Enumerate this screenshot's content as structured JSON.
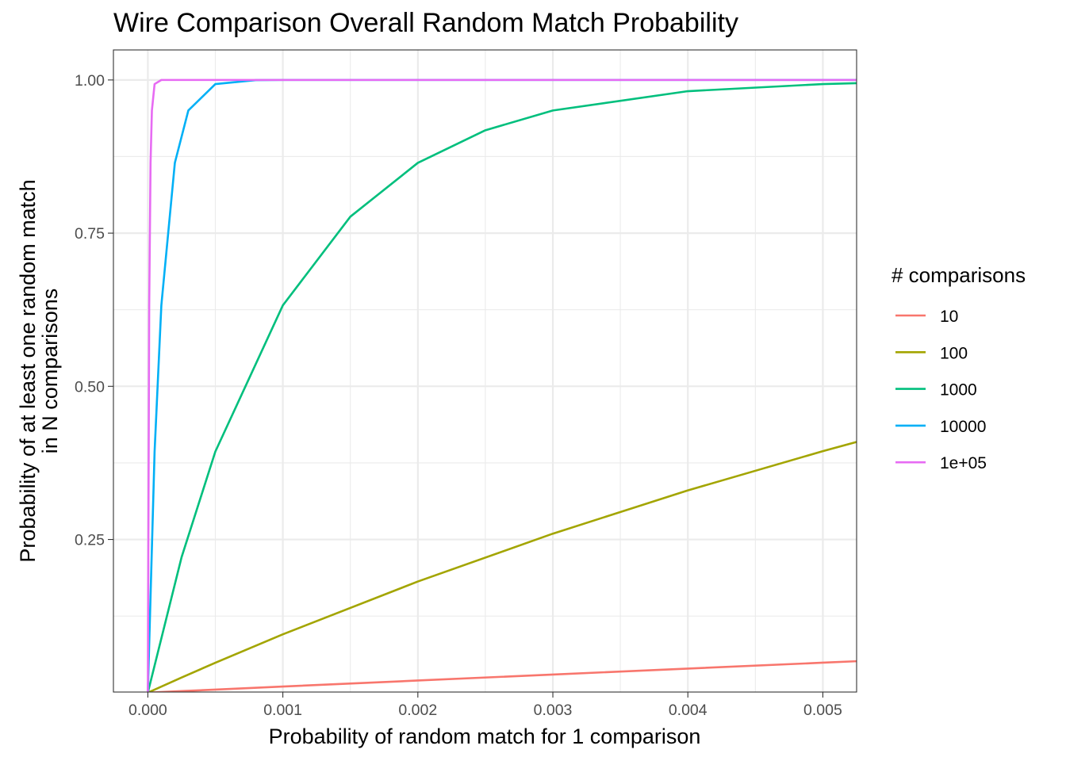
{
  "chart_data": {
    "type": "line",
    "title": "Wire Comparison Overall Random Match Probability",
    "xlabel": "Probability of random match for 1 comparison",
    "ylabel_lines": [
      "Probability of at least one random match",
      "in N comparisons"
    ],
    "xlim": [
      -0.000255,
      0.00525
    ],
    "ylim": [
      0.001,
      1.049
    ],
    "grid": true,
    "x_ticks": [
      {
        "value": 0.0,
        "label": "0.000"
      },
      {
        "value": 0.001,
        "label": "0.001"
      },
      {
        "value": 0.002,
        "label": "0.002"
      },
      {
        "value": 0.003,
        "label": "0.003"
      },
      {
        "value": 0.004,
        "label": "0.004"
      },
      {
        "value": 0.005,
        "label": "0.005"
      }
    ],
    "y_ticks": [
      {
        "value": 0.25,
        "label": "0.25"
      },
      {
        "value": 0.5,
        "label": "0.50"
      },
      {
        "value": 0.75,
        "label": "0.75"
      },
      {
        "value": 1.0,
        "label": "1.00"
      }
    ],
    "legend": {
      "title": "# comparisons",
      "position": "right"
    },
    "series": [
      {
        "name": "10",
        "color": "#F8766D",
        "n": 10,
        "x": [
          0,
          0.00025,
          0.0005,
          0.001,
          0.002,
          0.003,
          0.004,
          0.005,
          0.00525
        ],
        "y": [
          0,
          0.0025,
          0.005,
          0.01,
          0.0198,
          0.0296,
          0.0393,
          0.0489,
          0.0513
        ]
      },
      {
        "name": "100",
        "color": "#A3A500",
        "n": 100,
        "x": [
          0,
          0.00025,
          0.0005,
          0.001,
          0.002,
          0.003,
          0.004,
          0.005,
          0.00525
        ],
        "y": [
          0,
          0.0247,
          0.0488,
          0.0952,
          0.1814,
          0.2595,
          0.3301,
          0.3942,
          0.4092
        ]
      },
      {
        "name": "1000",
        "color": "#00BF7D",
        "n": 1000,
        "x": [
          0,
          0.00025,
          0.0005,
          0.001,
          0.0015,
          0.002,
          0.0025,
          0.003,
          0.004,
          0.005,
          0.00525
        ],
        "y": [
          0,
          0.2212,
          0.3935,
          0.6321,
          0.7769,
          0.8647,
          0.9179,
          0.9502,
          0.9817,
          0.9933,
          0.9948
        ]
      },
      {
        "name": "10000",
        "color": "#00B0F6",
        "n": 10000,
        "x": [
          0,
          5e-05,
          0.0001,
          0.0002,
          0.0003,
          0.0005,
          0.0008,
          0.001,
          0.003,
          0.005,
          0.00525
        ],
        "y": [
          0,
          0.3935,
          0.6321,
          0.8647,
          0.9502,
          0.9933,
          0.9997,
          1.0,
          1.0,
          1.0,
          1.0
        ]
      },
      {
        "name": "1e+05",
        "color": "#E76BF3",
        "n": 100000,
        "x": [
          0,
          1e-05,
          2e-05,
          3e-05,
          5e-05,
          0.0001,
          0.001,
          0.003,
          0.005,
          0.00525
        ],
        "y": [
          0,
          0.6321,
          0.8647,
          0.9502,
          0.9933,
          1.0,
          1.0,
          1.0,
          1.0,
          1.0
        ]
      }
    ]
  }
}
